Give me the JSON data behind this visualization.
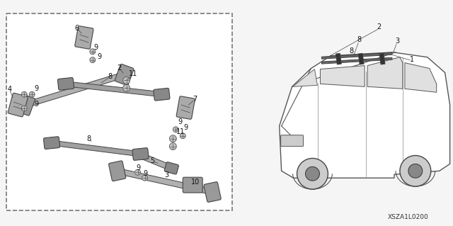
{
  "bg_color": "#f5f5f5",
  "border_color": "#888888",
  "diagram_id": "XSZA1L0200",
  "fig_width": 6.4,
  "fig_height": 3.19,
  "dpi": 100
}
